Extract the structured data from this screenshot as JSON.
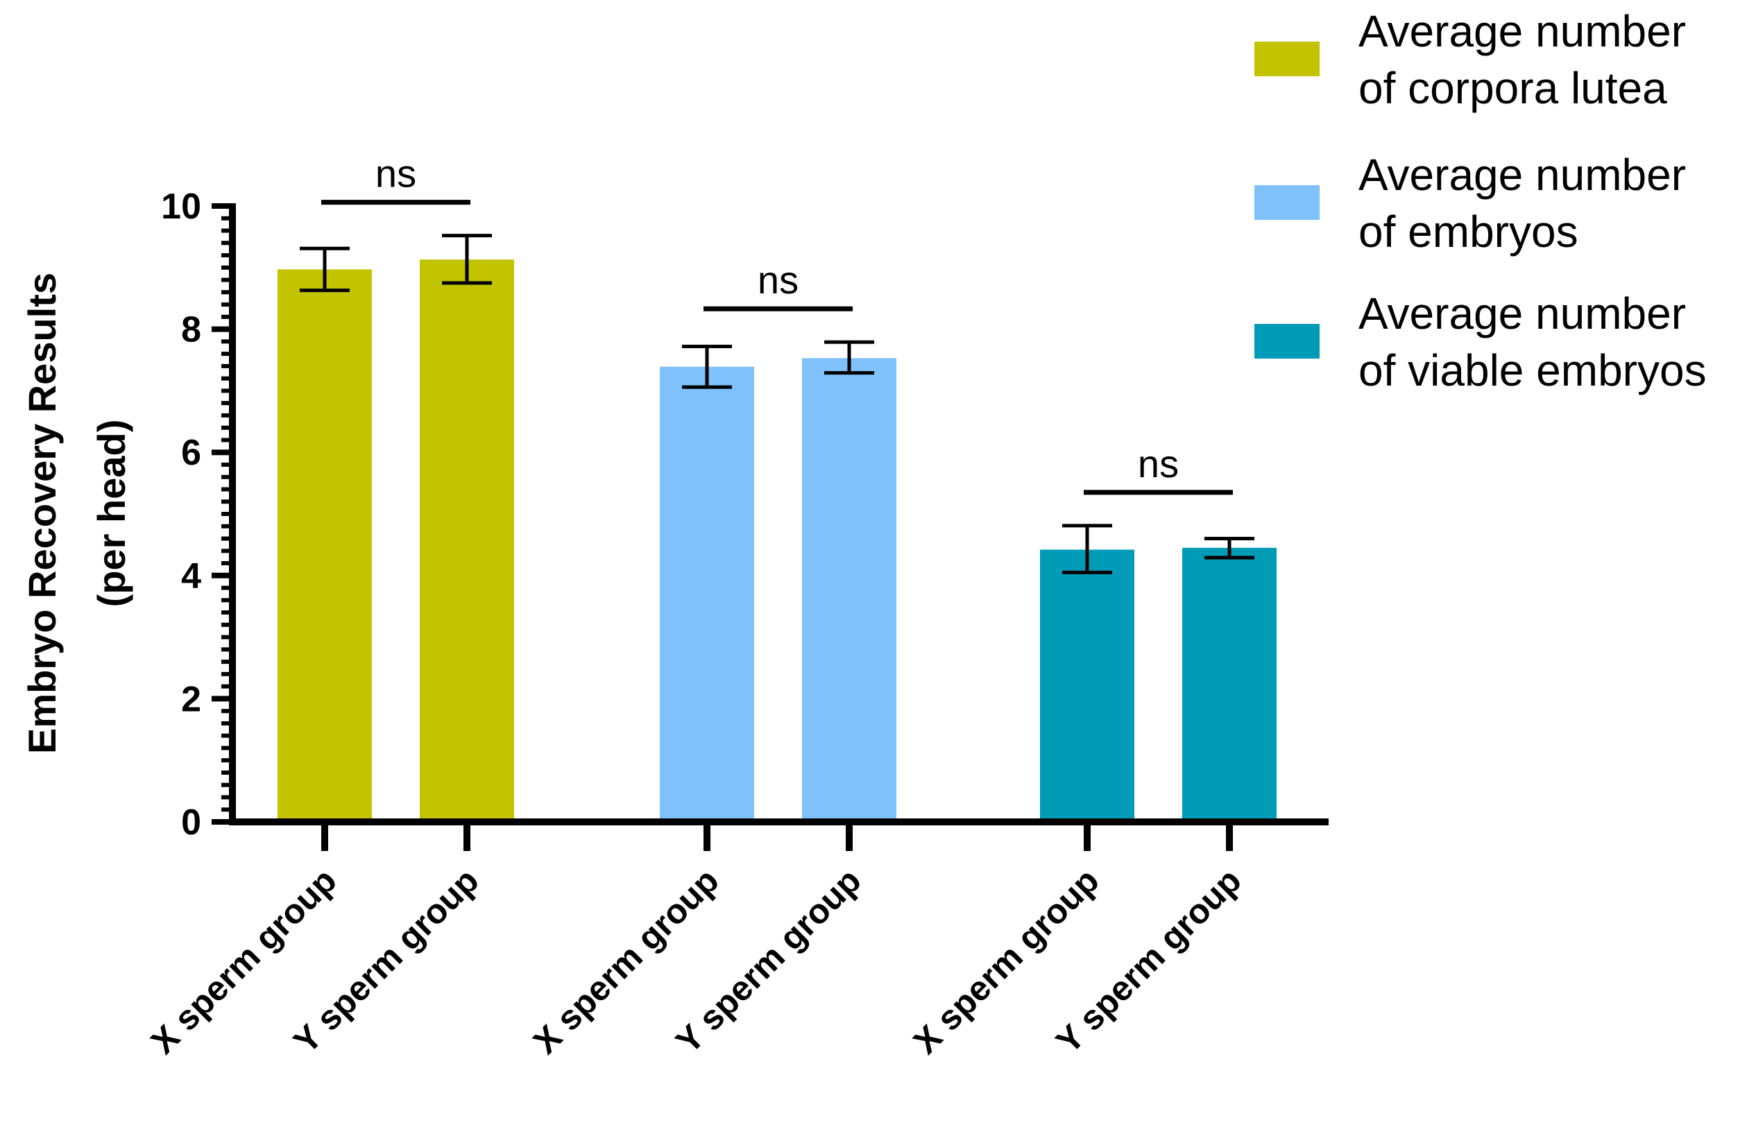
{
  "chart_data": {
    "type": "bar",
    "title": "",
    "xlabel": "",
    "ylabel": [
      "Embryo Recovery Results",
      "(per head)"
    ],
    "ylim": [
      0,
      10
    ],
    "yticks": [
      0,
      2,
      4,
      6,
      8,
      10
    ],
    "groups": [
      {
        "metric": "Average number of corpora lutea",
        "color": "#c4c300",
        "bars": [
          {
            "category": "X sperm group",
            "value": 8.97,
            "err_low": 8.63,
            "err_high": 9.31
          },
          {
            "category": "Y sperm group",
            "value": 9.13,
            "err_low": 8.75,
            "err_high": 9.52
          }
        ],
        "significance": "ns"
      },
      {
        "metric": "Average number of embryos",
        "color": "#7fc1fb",
        "bars": [
          {
            "category": "X sperm group",
            "value": 7.39,
            "err_low": 7.06,
            "err_high": 7.72
          },
          {
            "category": "Y sperm group",
            "value": 7.53,
            "err_low": 7.29,
            "err_high": 7.79
          }
        ],
        "significance": "ns"
      },
      {
        "metric": "Average number of viable embryos",
        "color": "#009bb7",
        "bars": [
          {
            "category": "X sperm group",
            "value": 4.42,
            "err_low": 4.05,
            "err_high": 4.81
          },
          {
            "category": "Y sperm group",
            "value": 4.45,
            "err_low": 4.29,
            "err_high": 4.6
          }
        ],
        "significance": "ns"
      }
    ],
    "legend": {
      "position": "top-right",
      "entries": [
        {
          "lines": [
            "Average number",
            "of corpora lutea"
          ],
          "color": "#c4c300"
        },
        {
          "lines": [
            "Average number",
            "of embryos"
          ],
          "color": "#7fc1fb"
        },
        {
          "lines": [
            "Average number",
            "of viable embryos"
          ],
          "color": "#009bb7"
        }
      ]
    },
    "grid": false
  }
}
